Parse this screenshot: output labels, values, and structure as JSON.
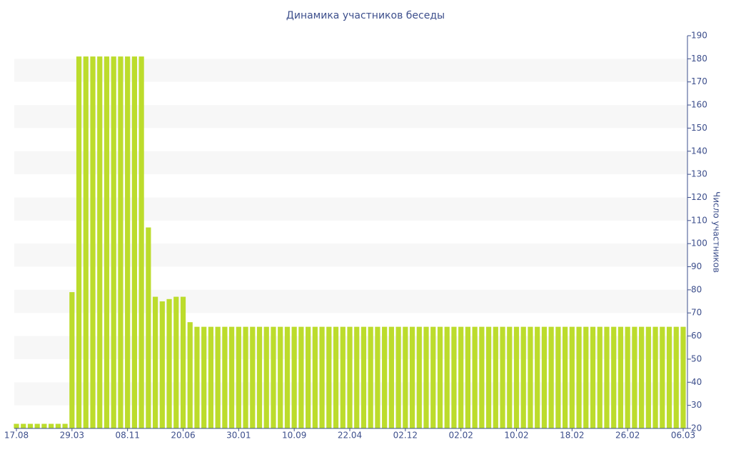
{
  "chart_data": {
    "type": "bar",
    "title": "Динамика участников беседы",
    "y_label": "Число участников",
    "categories": [
      "17.08",
      null,
      null,
      null,
      null,
      null,
      null,
      null,
      "29.03",
      null,
      null,
      null,
      null,
      null,
      null,
      null,
      "08.11",
      null,
      null,
      null,
      null,
      null,
      null,
      null,
      "20.06",
      null,
      null,
      null,
      null,
      null,
      null,
      null,
      "30.01",
      null,
      null,
      null,
      null,
      null,
      null,
      null,
      "10.09",
      null,
      null,
      null,
      null,
      null,
      null,
      null,
      "22.04",
      null,
      null,
      null,
      null,
      null,
      null,
      null,
      "02.12",
      null,
      null,
      null,
      null,
      null,
      null,
      null,
      "02.02",
      null,
      null,
      null,
      null,
      null,
      null,
      null,
      "10.02",
      null,
      null,
      null,
      null,
      null,
      null,
      null,
      "18.02",
      null,
      null,
      null,
      null,
      null,
      null,
      null,
      "26.02",
      null,
      null,
      null,
      null,
      null,
      null,
      null,
      "06.03"
    ],
    "values": [
      22,
      22,
      22,
      22,
      22,
      22,
      22,
      22,
      79,
      181,
      181,
      181,
      181,
      181,
      181,
      181,
      181,
      181,
      181,
      107,
      77,
      75,
      76,
      77,
      77,
      66,
      64,
      64,
      64,
      64,
      64,
      64,
      64,
      64,
      64,
      64,
      64,
      64,
      64,
      64,
      64,
      64,
      64,
      64,
      64,
      64,
      64,
      64,
      64,
      64,
      64,
      64,
      64,
      64,
      64,
      64,
      64,
      64,
      64,
      64,
      64,
      64,
      64,
      64,
      64,
      64,
      64,
      64,
      64,
      64,
      64,
      64,
      64,
      64,
      64,
      64,
      64,
      64,
      64,
      64,
      64,
      64,
      64,
      64,
      64,
      64,
      64,
      64,
      64,
      64,
      64,
      64,
      64,
      64,
      64,
      64,
      64
    ],
    "color": "#bcdc2c",
    "ylim": [
      20,
      190
    ],
    "yticks": [
      20,
      30,
      40,
      50,
      60,
      70,
      80,
      90,
      100,
      110,
      120,
      130,
      140,
      150,
      160,
      170,
      180,
      190
    ],
    "y_axis_side": "right",
    "grid": "bands",
    "band_color": "#f7f7f7"
  }
}
